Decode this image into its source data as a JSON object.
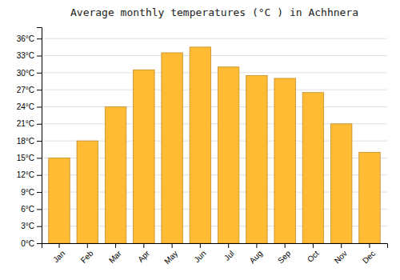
{
  "chart_data": {
    "type": "bar",
    "title": "Average monthly temperatures (°C ) in Achhnera",
    "categories": [
      "Jan",
      "Feb",
      "Mar",
      "Apr",
      "May",
      "Jun",
      "Jul",
      "Aug",
      "Sep",
      "Oct",
      "Nov",
      "Dec"
    ],
    "values": [
      15,
      18,
      24,
      30.5,
      33.5,
      34.5,
      31,
      29.5,
      29,
      26.5,
      21,
      16
    ],
    "color": "#FFBB33",
    "ylim": [
      0,
      38
    ],
    "yticks": [
      {
        "value": 0,
        "label": "0°C"
      },
      {
        "value": 3,
        "label": "3°C"
      },
      {
        "value": 6,
        "label": "6°C"
      },
      {
        "value": 9,
        "label": "9°C"
      },
      {
        "value": 12,
        "label": "12°C"
      },
      {
        "value": 15,
        "label": "15°C"
      },
      {
        "value": 18,
        "label": "18°C"
      },
      {
        "value": 21,
        "label": "21°C"
      },
      {
        "value": 24,
        "label": "24°C"
      },
      {
        "value": 27,
        "label": "27°C"
      },
      {
        "value": 30,
        "label": "30°C"
      },
      {
        "value": 33,
        "label": "33°C"
      },
      {
        "value": 36,
        "label": "36°C"
      }
    ],
    "grid": true
  }
}
